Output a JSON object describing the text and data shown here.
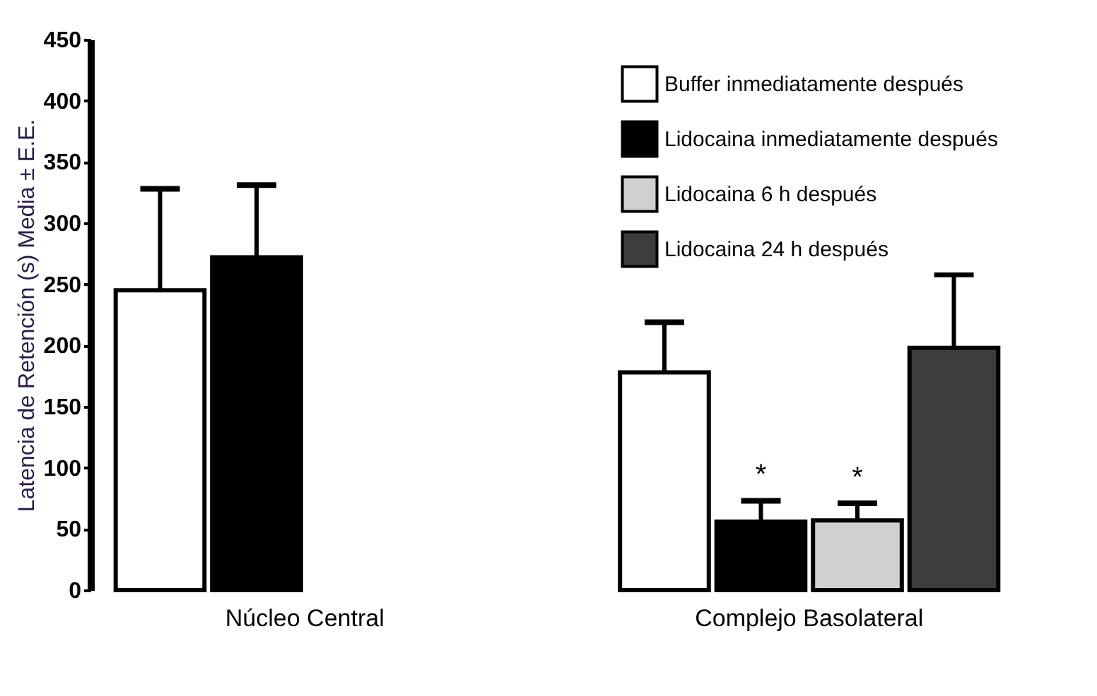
{
  "chart_data": {
    "type": "bar",
    "ylabel": "Latencia de Retención (s) Media ± E.E.",
    "categories": [
      "Núcleo Central",
      "Complejo Basolateral"
    ],
    "series": [
      {
        "name": "Buffer inmediatamente después",
        "color": "#ffffff",
        "values": [
          245,
          178
        ],
        "errors": [
          [
            245,
            328
          ],
          [
            178,
            219
          ]
        ]
      },
      {
        "name": "Lidocaina inmediatamente después",
        "color": "#000000",
        "values": [
          272,
          56
        ],
        "errors": [
          [
            272,
            331
          ],
          [
            56,
            73
          ]
        ],
        "value_labels": [
          null,
          "*"
        ]
      },
      {
        "name": "Lidocaina 6 h después",
        "color": "#d0d0d0",
        "values": [
          null,
          57
        ],
        "errors": [
          null,
          [
            57,
            71
          ]
        ],
        "value_labels": [
          null,
          "*"
        ]
      },
      {
        "name": "Lidocaina 24 h después",
        "color": "#3c3c3c",
        "values": [
          null,
          198
        ],
        "errors": [
          null,
          [
            198,
            258
          ]
        ]
      }
    ],
    "ylim": [
      0,
      450
    ],
    "yticks": [
      0,
      50,
      100,
      150,
      200,
      250,
      300,
      350,
      400,
      450
    ],
    "grid": false,
    "legend": "top right"
  }
}
